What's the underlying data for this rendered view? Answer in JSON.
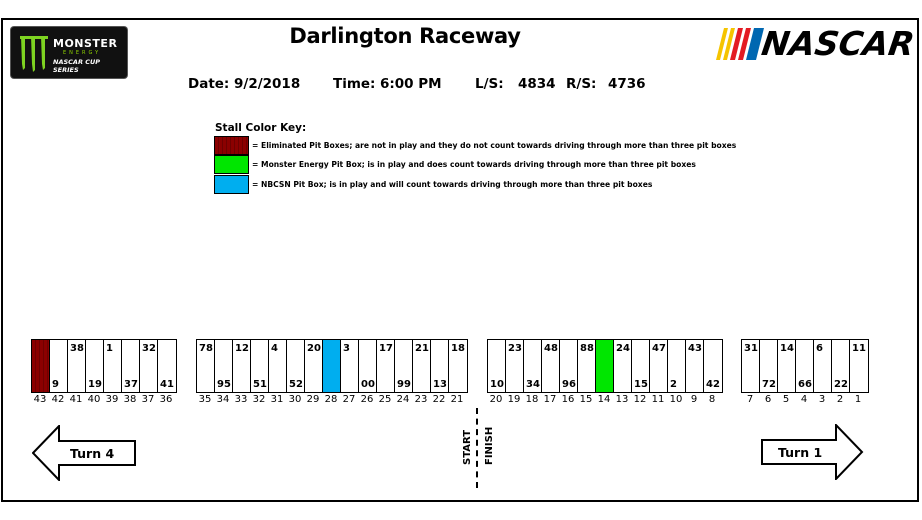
{
  "header": {
    "title": "Darlington Raceway",
    "date_label": "Date:",
    "date_value": "9/2/2018",
    "time_label": "Time:",
    "time_value": "6:00 PM",
    "ls_label": "L/S:",
    "ls_value": "4834",
    "rs_label": "R/S:",
    "rs_value": "4736"
  },
  "logos": {
    "monster": {
      "line1": "MONSTER",
      "line2": "ENERGY",
      "line3": "NASCAR CUP SERIES"
    },
    "nascar": {
      "word": "NASCAR",
      "stripe_colors": [
        "#f5c400",
        "#e31b23",
        "#0067b1"
      ]
    }
  },
  "key": {
    "title": "Stall Color Key:",
    "items": [
      {
        "color": "#8b0000",
        "label": "= Eliminated Pit Boxes; are not in play and they do not count towards driving through more than three pit boxes"
      },
      {
        "color": "#00e600",
        "label": "= Monster Energy Pit Box; is in play and does count towards driving through more than three pit boxes"
      },
      {
        "color": "#00aeef",
        "label": "= NBCSN Pit Box; is in play and will count towards driving through more than three pit boxes"
      }
    ]
  },
  "stall_groups": [
    {
      "stalls": [
        {
          "num": "43",
          "car": "",
          "pos": "",
          "type": "eliminated"
        },
        {
          "num": "42",
          "car": "9",
          "pos": "bottom",
          "type": ""
        },
        {
          "num": "41",
          "car": "38",
          "pos": "top",
          "type": ""
        },
        {
          "num": "40",
          "car": "19",
          "pos": "bottom",
          "type": ""
        },
        {
          "num": "39",
          "car": "1",
          "pos": "top",
          "type": ""
        },
        {
          "num": "38",
          "car": "37",
          "pos": "bottom",
          "type": ""
        },
        {
          "num": "37",
          "car": "32",
          "pos": "top",
          "type": ""
        },
        {
          "num": "36",
          "car": "41",
          "pos": "bottom",
          "type": ""
        }
      ]
    },
    {
      "stalls": [
        {
          "num": "35",
          "car": "78",
          "pos": "top",
          "type": ""
        },
        {
          "num": "34",
          "car": "95",
          "pos": "bottom",
          "type": ""
        },
        {
          "num": "33",
          "car": "12",
          "pos": "top",
          "type": ""
        },
        {
          "num": "32",
          "car": "51",
          "pos": "bottom",
          "type": ""
        },
        {
          "num": "31",
          "car": "4",
          "pos": "top",
          "type": ""
        },
        {
          "num": "30",
          "car": "52",
          "pos": "bottom",
          "type": ""
        },
        {
          "num": "29",
          "car": "20",
          "pos": "top",
          "type": ""
        },
        {
          "num": "28",
          "car": "",
          "pos": "",
          "type": "nbcsn"
        },
        {
          "num": "27",
          "car": "3",
          "pos": "top",
          "type": ""
        },
        {
          "num": "26",
          "car": "00",
          "pos": "bottom",
          "type": ""
        },
        {
          "num": "25",
          "car": "17",
          "pos": "top",
          "type": ""
        },
        {
          "num": "24",
          "car": "99",
          "pos": "bottom",
          "type": ""
        },
        {
          "num": "23",
          "car": "21",
          "pos": "top",
          "type": ""
        },
        {
          "num": "22",
          "car": "13",
          "pos": "bottom",
          "type": ""
        },
        {
          "num": "21",
          "car": "18",
          "pos": "top",
          "type": ""
        }
      ]
    },
    {
      "stalls": [
        {
          "num": "20",
          "car": "10",
          "pos": "bottom",
          "type": ""
        },
        {
          "num": "19",
          "car": "23",
          "pos": "top",
          "type": ""
        },
        {
          "num": "18",
          "car": "34",
          "pos": "bottom",
          "type": ""
        },
        {
          "num": "17",
          "car": "48",
          "pos": "top",
          "type": ""
        },
        {
          "num": "16",
          "car": "96",
          "pos": "bottom",
          "type": ""
        },
        {
          "num": "15",
          "car": "88",
          "pos": "top",
          "type": ""
        },
        {
          "num": "14",
          "car": "",
          "pos": "",
          "type": "monster"
        },
        {
          "num": "13",
          "car": "24",
          "pos": "top",
          "type": ""
        },
        {
          "num": "12",
          "car": "15",
          "pos": "bottom",
          "type": ""
        },
        {
          "num": "11",
          "car": "47",
          "pos": "top",
          "type": ""
        },
        {
          "num": "10",
          "car": "2",
          "pos": "bottom",
          "type": ""
        },
        {
          "num": "9",
          "car": "43",
          "pos": "top",
          "type": ""
        },
        {
          "num": "8",
          "car": "42",
          "pos": "bottom",
          "type": ""
        }
      ]
    },
    {
      "stalls": [
        {
          "num": "7",
          "car": "31",
          "pos": "top",
          "type": ""
        },
        {
          "num": "6",
          "car": "72",
          "pos": "bottom",
          "type": ""
        },
        {
          "num": "5",
          "car": "14",
          "pos": "top",
          "type": ""
        },
        {
          "num": "4",
          "car": "66",
          "pos": "bottom",
          "type": ""
        },
        {
          "num": "3",
          "car": "6",
          "pos": "top",
          "type": ""
        },
        {
          "num": "2",
          "car": "22",
          "pos": "bottom",
          "type": ""
        },
        {
          "num": "1",
          "car": "11",
          "pos": "top",
          "type": ""
        }
      ]
    }
  ],
  "track": {
    "turn_left": "Turn 4",
    "turn_right": "Turn 1",
    "start": "START",
    "finish": "FINISH"
  },
  "colors": {
    "eliminated": "#8b0000",
    "monster": "#00e600",
    "nbcsn": "#00aeef"
  }
}
